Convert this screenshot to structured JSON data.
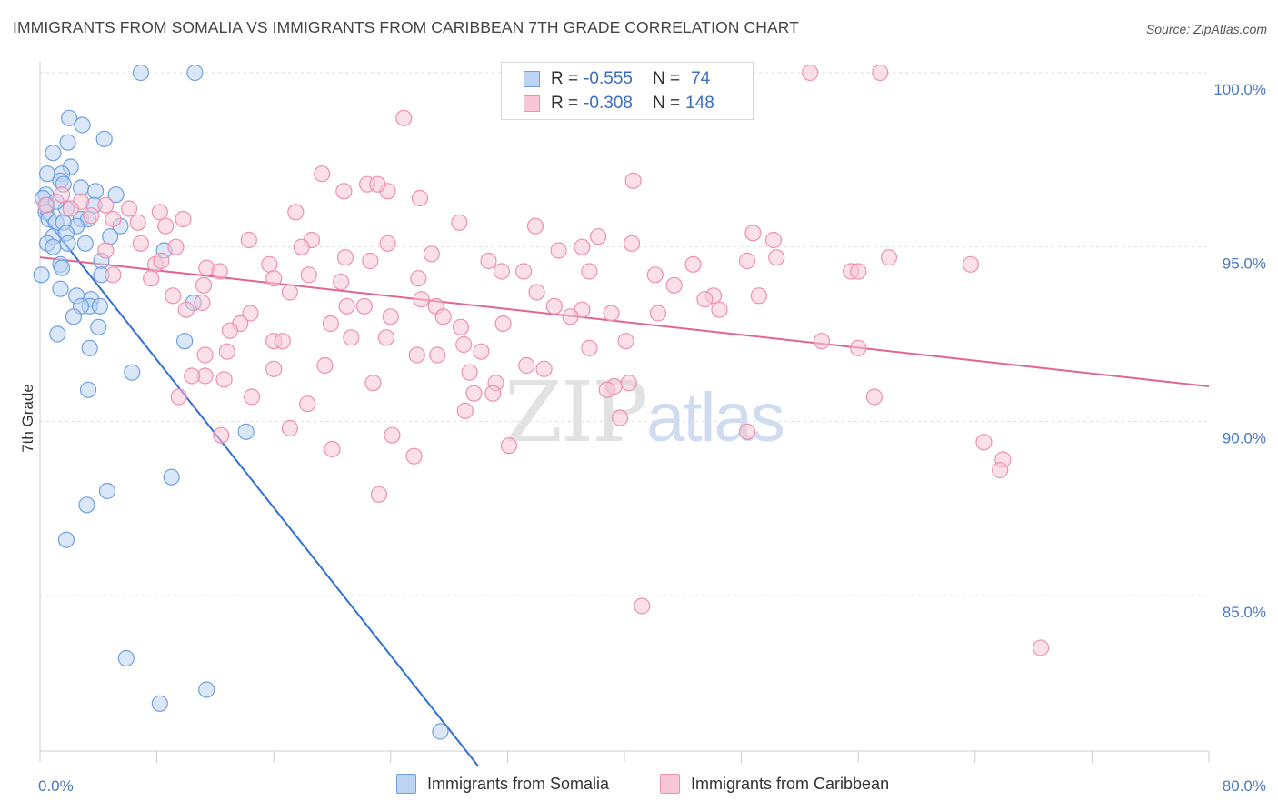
{
  "title": "IMMIGRANTS FROM SOMALIA VS IMMIGRANTS FROM CARIBBEAN 7TH GRADE CORRELATION CHART",
  "source": "Source: ZipAtlas.com",
  "watermark": {
    "part1": "ZIP",
    "part2": "atlas"
  },
  "legend": {
    "rows": [
      {
        "r_label": "R =",
        "r_value": "-0.555",
        "n_label": "N =",
        "n_value": "74",
        "color": "#6f9fe0",
        "fill": "#bcd3f3"
      },
      {
        "r_label": "R =",
        "r_value": "-0.308",
        "n_label": "N =",
        "n_value": "148",
        "color": "#ee8fb0",
        "fill": "#f8c6d6"
      }
    ]
  },
  "bottom_legend": [
    {
      "label": "Immigrants from Somalia",
      "color": "#6f9fe0",
      "fill": "#bcd3f3"
    },
    {
      "label": "Immigrants from Caribbean",
      "color": "#ee8fb0",
      "fill": "#f8c6d6"
    }
  ],
  "chart_data": {
    "type": "scatter",
    "title": "IMMIGRANTS FROM SOMALIA VS IMMIGRANTS FROM CARIBBEAN 7TH GRADE CORRELATION CHART",
    "xlabel": "",
    "ylabel": "7th Grade",
    "xlim": [
      0,
      80
    ],
    "ylim": [
      80.1,
      100.8
    ],
    "x_tick_labels": [
      "0.0%",
      "80.0%"
    ],
    "y_ticks": [
      85,
      90,
      95,
      100
    ],
    "y_tick_labels": [
      "85.0%",
      "90.0%",
      "95.0%",
      "100.0%"
    ],
    "grid": true,
    "series": [
      {
        "name": "Immigrants from Somalia",
        "color": "#6f9fe0",
        "fill": "#bcd3f3",
        "line_color": "#2f6fd6",
        "trend": {
          "x": [
            0,
            30.0
          ],
          "y": [
            96.0,
            80.1
          ]
        },
        "points": [
          [
            6.9,
            100.0
          ],
          [
            10.6,
            100.0
          ],
          [
            2.0,
            98.7
          ],
          [
            2.9,
            98.5
          ],
          [
            4.4,
            98.1
          ],
          [
            1.9,
            98.0
          ],
          [
            0.9,
            97.7
          ],
          [
            2.1,
            97.3
          ],
          [
            0.5,
            97.1
          ],
          [
            1.5,
            97.1
          ],
          [
            1.4,
            96.9
          ],
          [
            0.4,
            96.5
          ],
          [
            1.6,
            96.8
          ],
          [
            2.8,
            96.7
          ],
          [
            3.8,
            96.6
          ],
          [
            5.2,
            96.5
          ],
          [
            0.2,
            96.4
          ],
          [
            0.5,
            96.2
          ],
          [
            1.8,
            96.1
          ],
          [
            3.7,
            96.2
          ],
          [
            1.1,
            96.3
          ],
          [
            0.4,
            96.0
          ],
          [
            0.6,
            95.8
          ],
          [
            1.1,
            95.7
          ],
          [
            2.8,
            95.8
          ],
          [
            3.3,
            95.8
          ],
          [
            2.5,
            95.6
          ],
          [
            1.6,
            95.7
          ],
          [
            5.5,
            95.6
          ],
          [
            0.9,
            95.3
          ],
          [
            1.8,
            95.4
          ],
          [
            4.8,
            95.3
          ],
          [
            0.5,
            95.1
          ],
          [
            0.9,
            95.0
          ],
          [
            1.9,
            95.1
          ],
          [
            3.1,
            95.1
          ],
          [
            8.5,
            94.9
          ],
          [
            4.2,
            94.6
          ],
          [
            1.4,
            94.5
          ],
          [
            1.5,
            94.4
          ],
          [
            0.1,
            94.2
          ],
          [
            4.2,
            94.2
          ],
          [
            1.4,
            93.8
          ],
          [
            2.5,
            93.6
          ],
          [
            3.5,
            93.5
          ],
          [
            3.4,
            93.3
          ],
          [
            2.8,
            93.3
          ],
          [
            4.1,
            93.3
          ],
          [
            10.5,
            93.4
          ],
          [
            2.3,
            93.0
          ],
          [
            4.0,
            92.7
          ],
          [
            1.2,
            92.5
          ],
          [
            9.9,
            92.3
          ],
          [
            3.4,
            92.1
          ],
          [
            6.3,
            91.4
          ],
          [
            3.3,
            90.9
          ],
          [
            14.1,
            89.7
          ],
          [
            9.0,
            88.4
          ],
          [
            4.6,
            88.0
          ],
          [
            3.2,
            87.6
          ],
          [
            1.8,
            86.6
          ],
          [
            5.9,
            83.2
          ],
          [
            11.4,
            82.3
          ],
          [
            8.2,
            81.9
          ],
          [
            27.4,
            81.1
          ]
        ]
      },
      {
        "name": "Immigrants from Caribbean",
        "color": "#ee8fb0",
        "fill": "#f8c6d6",
        "line_color": "#e2648f",
        "trend": {
          "x": [
            0,
            80
          ],
          "y": [
            94.7,
            91.0
          ]
        },
        "points": [
          [
            52.7,
            100.0
          ],
          [
            57.5,
            100.0
          ],
          [
            24.9,
            98.7
          ],
          [
            19.3,
            97.1
          ],
          [
            40.6,
            96.9
          ],
          [
            22.4,
            96.8
          ],
          [
            23.8,
            96.6
          ],
          [
            23.1,
            96.8
          ],
          [
            20.8,
            96.6
          ],
          [
            26.0,
            96.4
          ],
          [
            1.5,
            96.5
          ],
          [
            2.8,
            96.3
          ],
          [
            4.5,
            96.2
          ],
          [
            6.1,
            96.1
          ],
          [
            8.2,
            96.0
          ],
          [
            17.5,
            96.0
          ],
          [
            0.4,
            96.2
          ],
          [
            2.1,
            96.1
          ],
          [
            3.5,
            95.9
          ],
          [
            5.0,
            95.8
          ],
          [
            6.7,
            95.7
          ],
          [
            9.8,
            95.8
          ],
          [
            8.6,
            95.6
          ],
          [
            28.7,
            95.7
          ],
          [
            33.9,
            95.6
          ],
          [
            38.2,
            95.3
          ],
          [
            48.8,
            95.4
          ],
          [
            50.2,
            95.2
          ],
          [
            14.3,
            95.2
          ],
          [
            18.6,
            95.2
          ],
          [
            6.9,
            95.1
          ],
          [
            9.3,
            95.0
          ],
          [
            4.5,
            94.9
          ],
          [
            17.9,
            95.0
          ],
          [
            23.8,
            95.1
          ],
          [
            35.5,
            94.9
          ],
          [
            40.5,
            95.1
          ],
          [
            37.1,
            95.0
          ],
          [
            26.8,
            94.8
          ],
          [
            20.9,
            94.7
          ],
          [
            22.6,
            94.6
          ],
          [
            30.7,
            94.6
          ],
          [
            48.4,
            94.6
          ],
          [
            50.4,
            94.7
          ],
          [
            58.1,
            94.7
          ],
          [
            7.9,
            94.5
          ],
          [
            15.7,
            94.5
          ],
          [
            11.4,
            94.4
          ],
          [
            12.3,
            94.3
          ],
          [
            31.6,
            94.3
          ],
          [
            33.1,
            94.3
          ],
          [
            37.6,
            94.3
          ],
          [
            42.1,
            94.2
          ],
          [
            44.7,
            94.5
          ],
          [
            55.5,
            94.3
          ],
          [
            56.0,
            94.3
          ],
          [
            16.0,
            94.1
          ],
          [
            18.4,
            94.2
          ],
          [
            20.6,
            94.0
          ],
          [
            25.9,
            94.1
          ],
          [
            7.6,
            94.1
          ],
          [
            43.4,
            93.9
          ],
          [
            11.2,
            93.9
          ],
          [
            17.1,
            93.7
          ],
          [
            34.0,
            93.7
          ],
          [
            46.1,
            93.6
          ],
          [
            49.2,
            93.6
          ],
          [
            9.1,
            93.6
          ],
          [
            26.1,
            93.5
          ],
          [
            21.0,
            93.3
          ],
          [
            22.2,
            93.3
          ],
          [
            27.1,
            93.3
          ],
          [
            35.2,
            93.3
          ],
          [
            37.1,
            93.2
          ],
          [
            39.1,
            93.1
          ],
          [
            42.3,
            93.1
          ],
          [
            46.5,
            93.2
          ],
          [
            10.0,
            93.2
          ],
          [
            11.1,
            93.4
          ],
          [
            14.4,
            93.1
          ],
          [
            27.6,
            93.0
          ],
          [
            13.7,
            92.8
          ],
          [
            19.9,
            92.8
          ],
          [
            28.8,
            92.7
          ],
          [
            31.7,
            92.8
          ],
          [
            36.3,
            93.0
          ],
          [
            13.0,
            92.6
          ],
          [
            21.3,
            92.4
          ],
          [
            16.0,
            92.3
          ],
          [
            16.6,
            92.3
          ],
          [
            23.7,
            92.4
          ],
          [
            40.1,
            92.3
          ],
          [
            53.5,
            92.3
          ],
          [
            12.8,
            92.0
          ],
          [
            25.8,
            91.9
          ],
          [
            27.2,
            91.9
          ],
          [
            29.0,
            92.2
          ],
          [
            30.2,
            92.0
          ],
          [
            37.6,
            92.1
          ],
          [
            56.0,
            92.1
          ],
          [
            11.3,
            91.9
          ],
          [
            19.5,
            91.6
          ],
          [
            33.3,
            91.6
          ],
          [
            34.5,
            91.5
          ],
          [
            11.3,
            91.3
          ],
          [
            12.6,
            91.2
          ],
          [
            29.4,
            91.4
          ],
          [
            10.4,
            91.3
          ],
          [
            22.8,
            91.1
          ],
          [
            31.2,
            91.1
          ],
          [
            39.3,
            91.0
          ],
          [
            40.3,
            91.1
          ],
          [
            29.7,
            90.8
          ],
          [
            31.0,
            90.8
          ],
          [
            14.5,
            90.7
          ],
          [
            18.3,
            90.5
          ],
          [
            9.5,
            90.7
          ],
          [
            38.8,
            90.9
          ],
          [
            57.1,
            90.7
          ],
          [
            29.1,
            90.3
          ],
          [
            39.7,
            90.1
          ],
          [
            17.1,
            89.8
          ],
          [
            12.4,
            89.6
          ],
          [
            24.1,
            89.6
          ],
          [
            48.4,
            89.7
          ],
          [
            20.0,
            89.2
          ],
          [
            25.6,
            89.0
          ],
          [
            32.1,
            89.3
          ],
          [
            64.6,
            89.4
          ],
          [
            65.9,
            88.9
          ],
          [
            65.7,
            88.6
          ],
          [
            23.2,
            87.9
          ],
          [
            41.2,
            84.7
          ],
          [
            68.5,
            83.5
          ],
          [
            8.3,
            94.6
          ],
          [
            5.0,
            94.2
          ],
          [
            16.0,
            91.5
          ],
          [
            45.5,
            93.5
          ],
          [
            63.7,
            94.5
          ],
          [
            24.0,
            93.0
          ]
        ]
      }
    ]
  }
}
